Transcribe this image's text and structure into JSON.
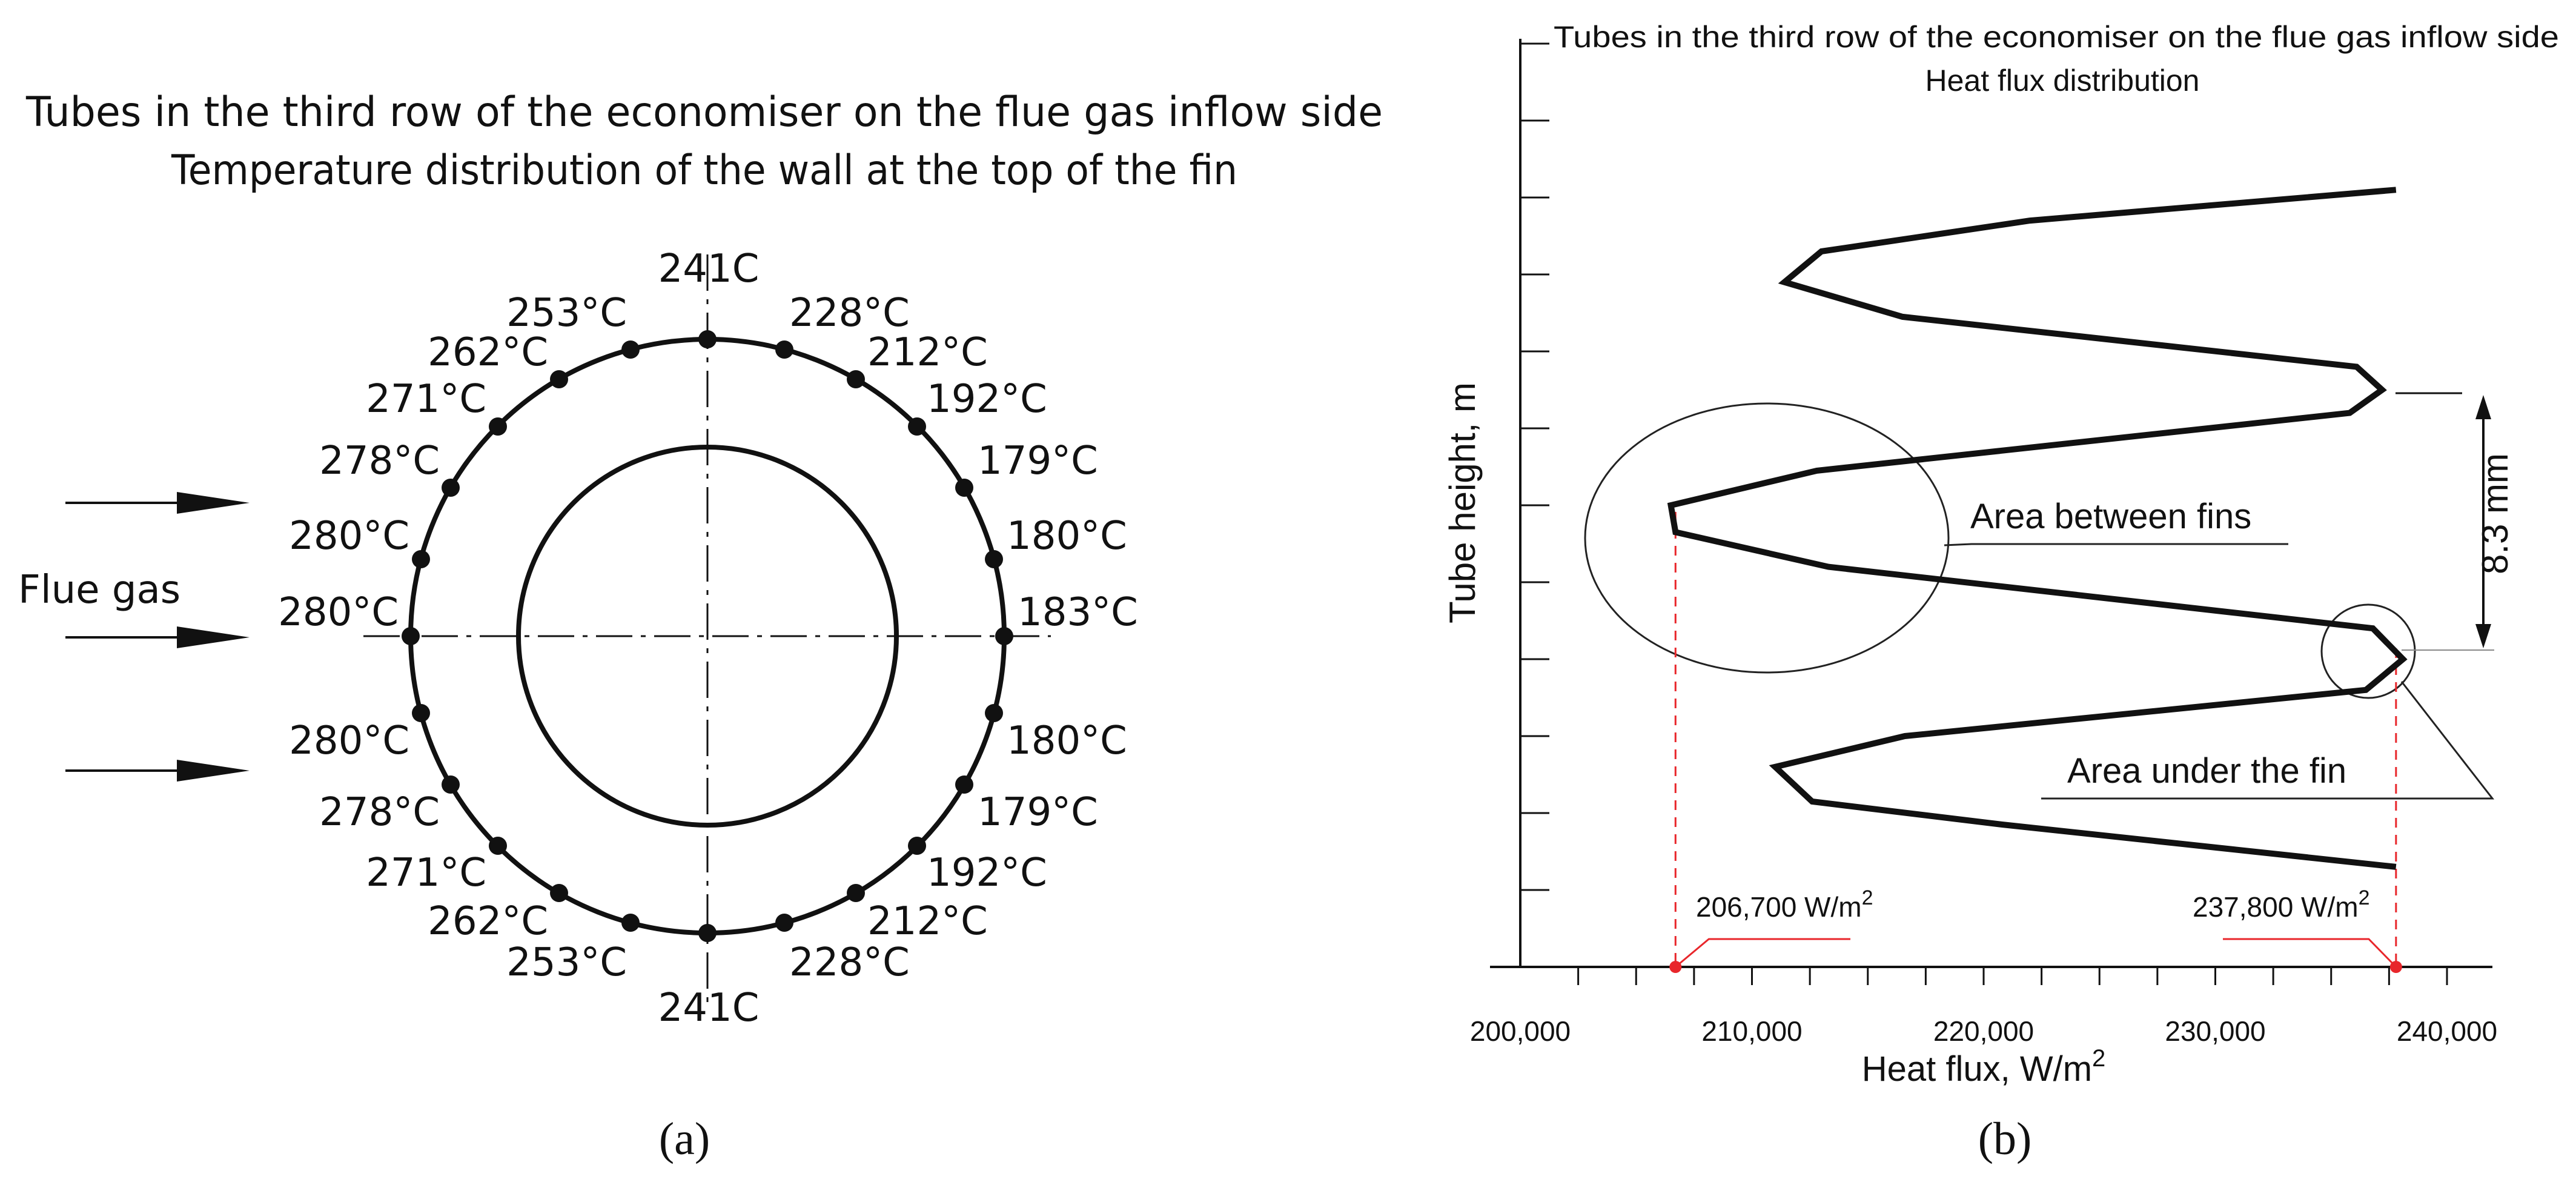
{
  "panel_a": {
    "title_line1": "Tubes in the third row of the economiser on the flue gas inflow side",
    "title_line2": "Temperature distribution of the wall at the top of the fin",
    "flow_label": "Flue gas",
    "label": "(a)",
    "temperatures": {
      "top": "241C",
      "right_1": "228°C",
      "right_2": "212°C",
      "right_3": "192°C",
      "right_4": "179°C",
      "right_5": "180°C",
      "right_mid": "183°C",
      "right_7": "180°C",
      "right_8": "179°C",
      "right_9": "192°C",
      "right_10": "212°C",
      "right_11": "228°C",
      "bottom": "241C",
      "left_11": "253°C",
      "left_10": "262°C",
      "left_9": "271°C",
      "left_8": "278°C",
      "left_7": "280°C",
      "left_mid": "280°C",
      "left_5": "280°C",
      "left_4": "278°C",
      "left_3": "271°C",
      "left_2": "262°C",
      "left_1": "253°C"
    }
  },
  "panel_b": {
    "title_line1": "Tubes in the third row of the economiser on the flue gas inflow side",
    "title_line2": "Heat flux distribution",
    "ylabel": "Tube height, m",
    "xlabel": "Heat flux, W/m",
    "xlabel_sup": "2",
    "label": "(b)",
    "annotation_between": "Area between fins",
    "annotation_under": "Area under the fin",
    "dimension_label": "8.3 mm",
    "min_marker_text": "206,700 W/m",
    "min_marker_sup": "2",
    "max_marker_text": "237,800 W/m",
    "max_marker_sup": "2",
    "accent_color": "#e8262b",
    "ticks": [
      "200,000",
      "210,000",
      "220,000",
      "230,000",
      "240,000"
    ]
  },
  "chart_data": {
    "type": "line",
    "title": "Tubes in the third row of the economiser on the flue gas inflow side / Heat flux distribution",
    "xlabel": "Heat flux, W/m2",
    "ylabel": "Tube height, m",
    "xlim": [
      200000,
      240000
    ],
    "x_ticks": [
      200000,
      210000,
      220000,
      230000,
      240000
    ],
    "y_ticks_labeled": false,
    "y_scale": "relative profile height (0 = baseline, 10 = top tick)",
    "series": [
      {
        "values": [
          {
            "x": 237800,
            "y": 1.3
          },
          {
            "x": 220800,
            "y": 1.85
          },
          {
            "x": 212600,
            "y": 2.15
          },
          {
            "x": 211000,
            "y": 2.6
          },
          {
            "x": 216600,
            "y": 3.0
          },
          {
            "x": 236500,
            "y": 3.6
          },
          {
            "x": 238100,
            "y": 4.0
          },
          {
            "x": 236800,
            "y": 4.4
          },
          {
            "x": 213300,
            "y": 5.2
          },
          {
            "x": 206700,
            "y": 5.65
          },
          {
            "x": 206500,
            "y": 6.0
          },
          {
            "x": 212800,
            "y": 6.45
          },
          {
            "x": 235800,
            "y": 7.2
          },
          {
            "x": 237200,
            "y": 7.5
          },
          {
            "x": 236100,
            "y": 7.8
          },
          {
            "x": 216500,
            "y": 8.45
          },
          {
            "x": 211400,
            "y": 8.9
          },
          {
            "x": 213000,
            "y": 9.3
          },
          {
            "x": 222000,
            "y": 9.7
          },
          {
            "x": 237800,
            "y": 10.1
          }
        ]
      }
    ],
    "annotations": [
      {
        "text": "Area between fins",
        "x": 206700
      },
      {
        "text": "Area under the fin",
        "x": 237800
      },
      {
        "text": "8.3 mm"
      },
      {
        "text": "206,700 W/m2",
        "x": 206700
      },
      {
        "text": "237,800 W/m2",
        "x": 237800
      }
    ],
    "legend": "none",
    "grid": false
  }
}
